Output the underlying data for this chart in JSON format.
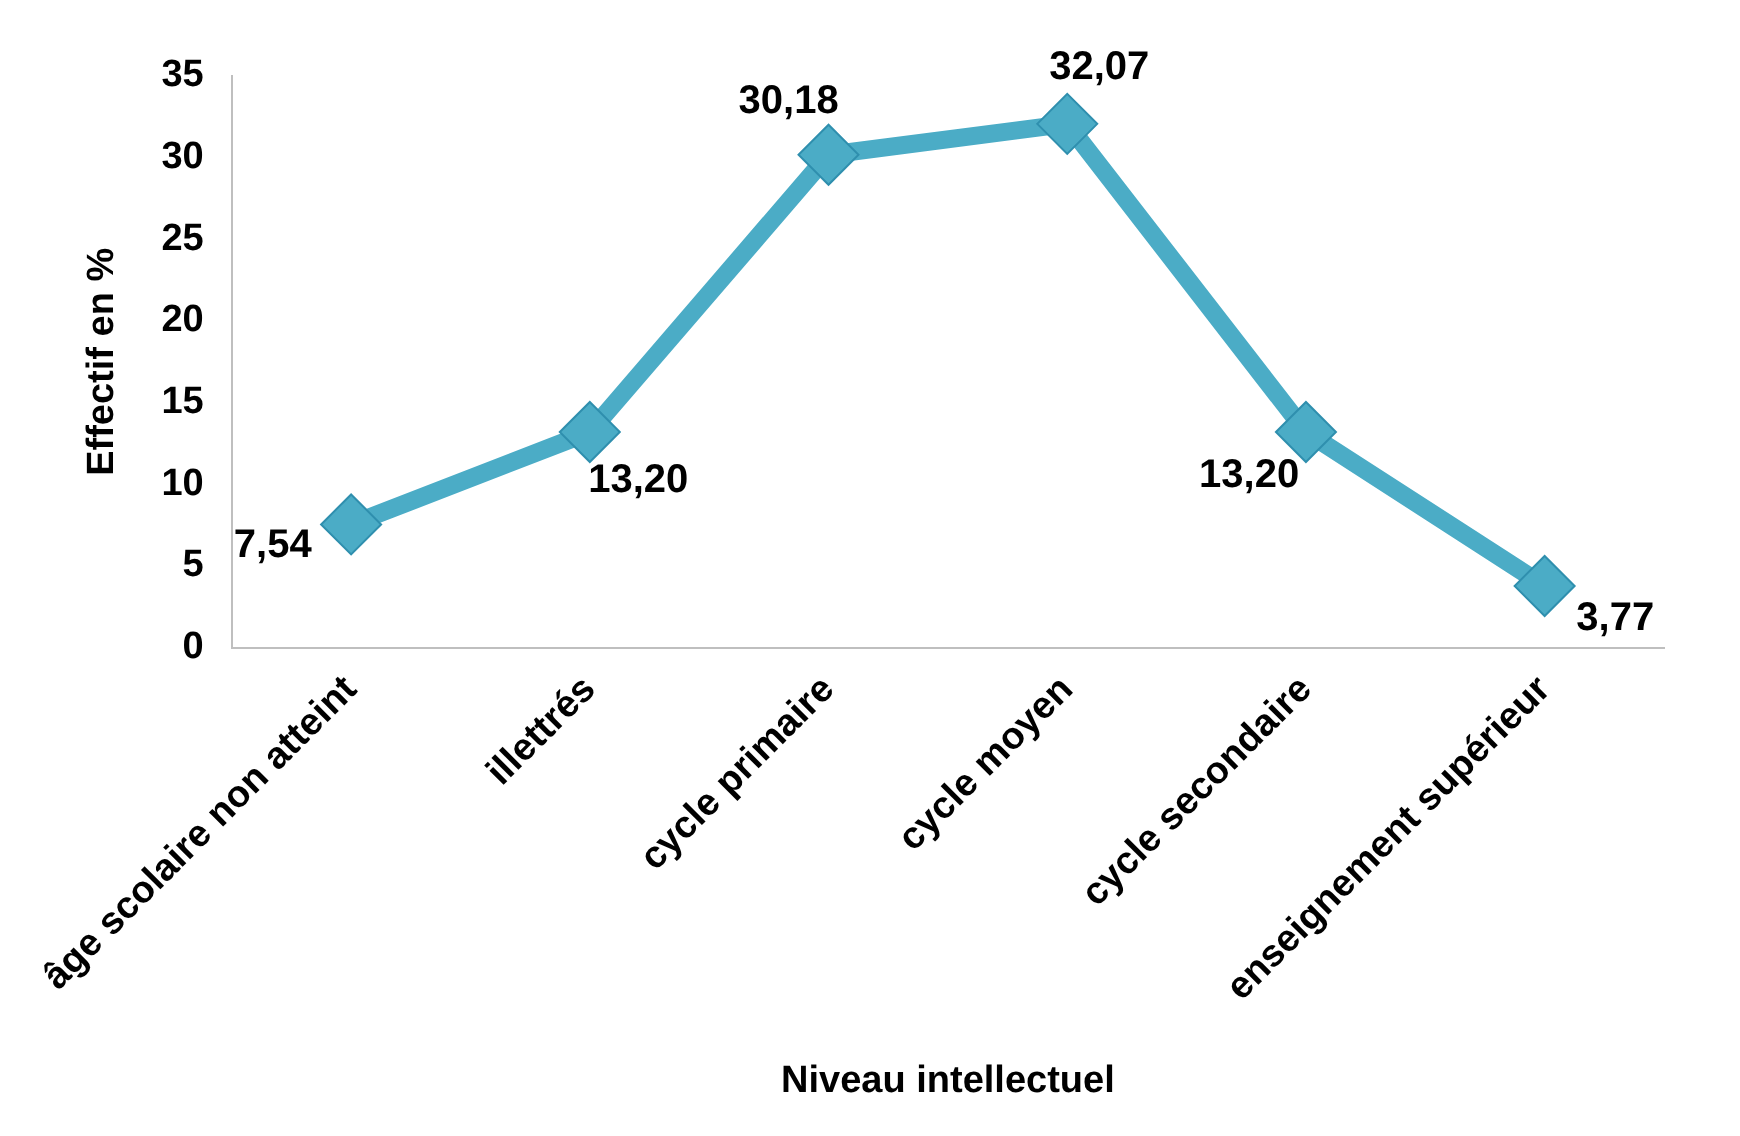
{
  "chart_data": {
    "type": "line",
    "xlabel": "Niveau intellectuel",
    "ylabel": "Effectif en %",
    "categories": [
      "âge scolaire non atteint",
      "illettrés",
      "cycle primaire",
      "cycle moyen",
      "cycle secondaire",
      "enseignement supérieur"
    ],
    "values": [
      7.54,
      13.2,
      30.18,
      32.07,
      13.2,
      3.77
    ],
    "value_labels": [
      "7,54",
      "13,20",
      "30,18",
      "32,07",
      "13,20",
      "3,77"
    ],
    "color": "#4bacc6",
    "marker": "diamond",
    "line_style": "solid",
    "ylim": [
      0,
      35
    ],
    "yticks": [
      0,
      5,
      10,
      15,
      20,
      25,
      30,
      35
    ],
    "grid": false,
    "legend": false
  }
}
